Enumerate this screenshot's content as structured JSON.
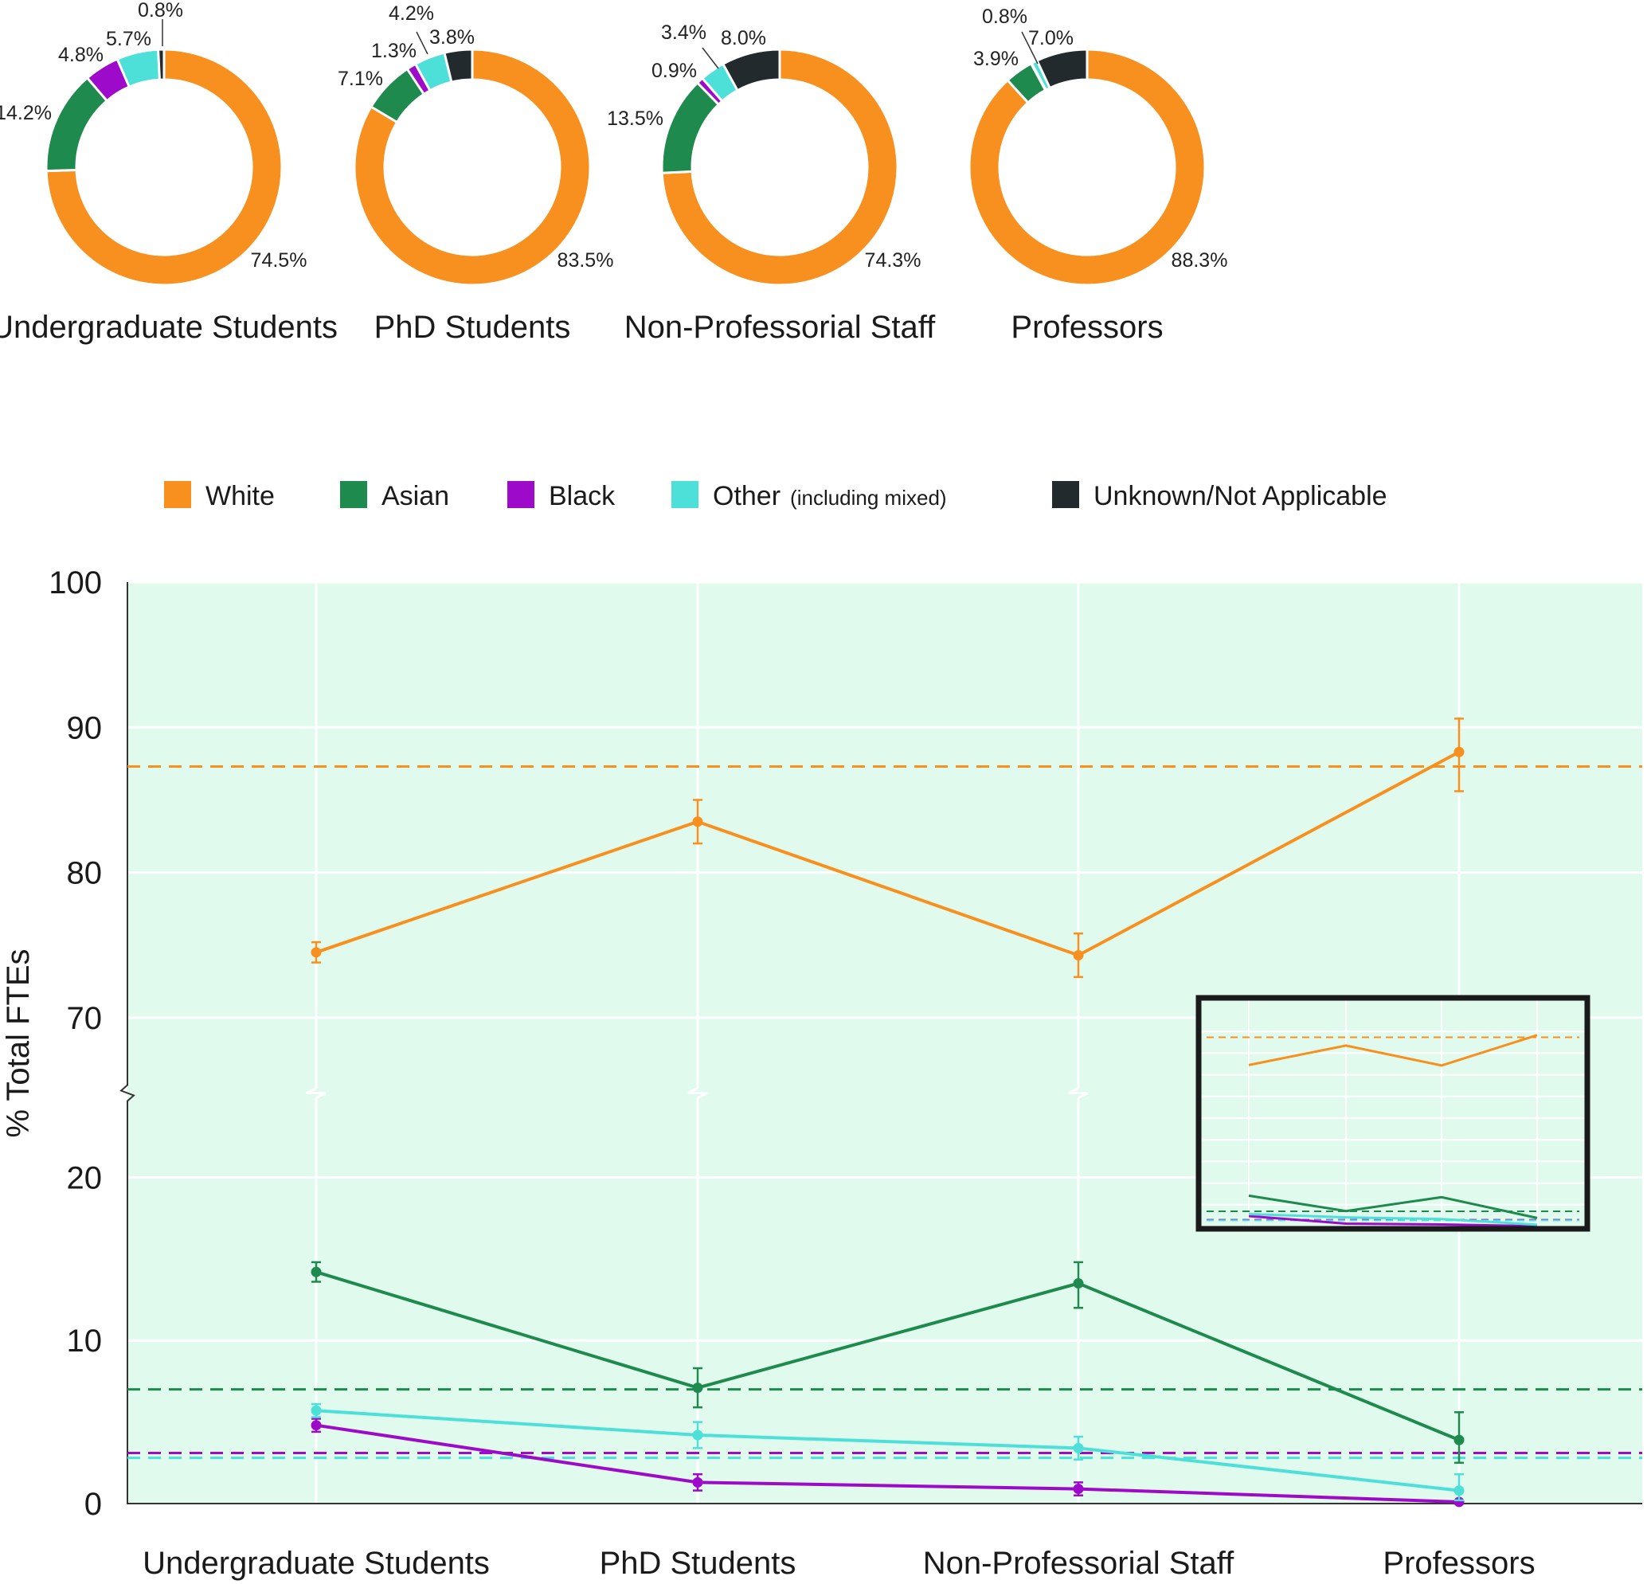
{
  "colors": {
    "White": "#F7901E",
    "Asian": "#1E8A4E",
    "Black": "#9E0AC9",
    "Other": "#4DE0D8",
    "Unknown": "#222A2E",
    "plot_bg": "#E0FAEE",
    "grid": "#FFFFFF"
  },
  "legend": [
    {
      "key": "White",
      "label": "White",
      "note": ""
    },
    {
      "key": "Asian",
      "label": "Asian",
      "note": ""
    },
    {
      "key": "Black",
      "label": "Black",
      "note": ""
    },
    {
      "key": "Other",
      "label": "Other",
      "note": "(including mixed)"
    },
    {
      "key": "Unknown",
      "label": "Unknown/Not Applicable",
      "note": ""
    }
  ],
  "chart_data": [
    {
      "type": "pie",
      "style": "donut",
      "title": "Undergraduate Students",
      "categories": [
        "White",
        "Asian",
        "Black",
        "Other",
        "Unknown"
      ],
      "values": [
        74.5,
        14.2,
        4.8,
        5.7,
        0.8
      ],
      "labels": [
        "74.5%",
        "14.2%",
        "4.8%",
        "5.7%",
        "0.8%"
      ]
    },
    {
      "type": "pie",
      "style": "donut",
      "title": "PhD Students",
      "categories": [
        "White",
        "Asian",
        "Black",
        "Other",
        "Unknown"
      ],
      "values": [
        83.5,
        7.1,
        1.3,
        4.2,
        3.8
      ],
      "labels": [
        "83.5%",
        "7.1%",
        "1.3%",
        "4.2%",
        "3.8%"
      ]
    },
    {
      "type": "pie",
      "style": "donut",
      "title": "Non-Professorial Staff",
      "categories": [
        "White",
        "Asian",
        "Black",
        "Other",
        "Unknown"
      ],
      "values": [
        74.3,
        13.5,
        0.9,
        3.4,
        8.0
      ],
      "labels": [
        "74.3%",
        "13.5%",
        "0.9%",
        "3.4%",
        "8.0%"
      ]
    },
    {
      "type": "pie",
      "style": "donut",
      "title": "Professors",
      "categories": [
        "White",
        "Asian",
        "Black",
        "Other",
        "Unknown"
      ],
      "values": [
        88.3,
        3.9,
        0.1,
        0.8,
        7.0
      ],
      "labels": [
        "88.3%",
        "3.9%",
        "",
        "0.8%",
        "7.0%"
      ]
    },
    {
      "type": "line",
      "title": "",
      "ylabel": "% Total FTEs",
      "xlabel": "",
      "categories": [
        "Undergraduate Students",
        "PhD Students",
        "Non-Professorial Staff",
        "Professors"
      ],
      "ylim": [
        0,
        100
      ],
      "axis_break": [
        25,
        65
      ],
      "yticks": [
        0,
        10,
        20,
        70,
        80,
        90,
        100
      ],
      "grid": true,
      "series": [
        {
          "name": "White",
          "values": [
            74.5,
            83.5,
            74.3,
            88.3
          ],
          "err_low": [
            0.7,
            1.5,
            1.5,
            2.7
          ],
          "err_high": [
            0.7,
            1.5,
            1.5,
            2.3
          ]
        },
        {
          "name": "Asian",
          "values": [
            14.2,
            7.1,
            13.5,
            3.9
          ],
          "err_low": [
            0.6,
            1.2,
            1.5,
            1.4
          ],
          "err_high": [
            0.6,
            1.2,
            1.3,
            1.7
          ]
        },
        {
          "name": "Black",
          "values": [
            4.8,
            1.3,
            0.9,
            0.1
          ],
          "err_low": [
            0.4,
            0.5,
            0.4,
            0.1
          ],
          "err_high": [
            0.4,
            0.5,
            0.4,
            0.1
          ]
        },
        {
          "name": "Other",
          "values": [
            5.7,
            4.2,
            3.4,
            0.8
          ],
          "err_low": [
            0.4,
            0.8,
            0.7,
            0.6
          ],
          "err_high": [
            0.4,
            0.8,
            0.7,
            1.0
          ]
        }
      ],
      "reference_lines": [
        {
          "name": "White",
          "value": 87.3
        },
        {
          "name": "Asian",
          "value": 7.0
        },
        {
          "name": "Black",
          "value": 3.1
        },
        {
          "name": "Other",
          "value": 2.8
        }
      ],
      "inset": "zoomed-out overview of the same series on a continuous 0–100 scale"
    }
  ]
}
